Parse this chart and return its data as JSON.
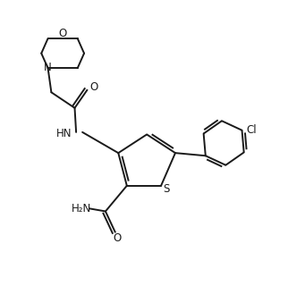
{
  "bg_color": "#ffffff",
  "line_color": "#1a1a1a",
  "line_width": 1.4,
  "font_size": 8.5,
  "xlim": [
    0,
    10
  ],
  "ylim": [
    0,
    10
  ],
  "figsize": [
    3.41,
    3.2
  ],
  "dpi": 100
}
